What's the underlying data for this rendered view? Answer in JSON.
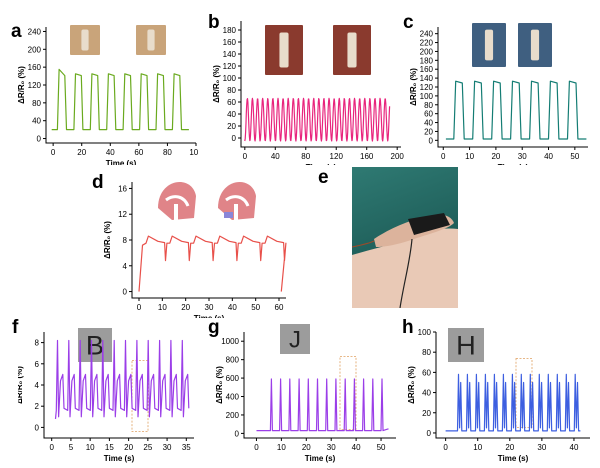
{
  "panels": {
    "a": {
      "letter": "a"
    },
    "b": {
      "letter": "b"
    },
    "c": {
      "letter": "c"
    },
    "d": {
      "letter": "d"
    },
    "e": {
      "letter": "e"
    },
    "f": {
      "letter": "f"
    },
    "g": {
      "letter": "g"
    },
    "h": {
      "letter": "h"
    }
  },
  "chart_data": [
    {
      "id": "a",
      "type": "line",
      "color": "#6aaa1f",
      "xlabel": "Time (s)",
      "ylabel": "ΔR/R₀ (%)",
      "xlim": [
        -5,
        100
      ],
      "ylim": [
        -10,
        250
      ],
      "xticks": [
        0,
        20,
        40,
        60,
        80,
        100
      ],
      "yticks": [
        0,
        40,
        80,
        120,
        160,
        200,
        240
      ],
      "series": [
        {
          "kind": "square",
          "period": 11.5,
          "start": 3,
          "low": 20,
          "high": 145,
          "cycles": 8,
          "firstPeak": 155
        }
      ]
    },
    {
      "id": "b",
      "type": "line",
      "color": "#e8257d",
      "xlabel": "Time (s)",
      "ylabel": "ΔR/R₀ (%)",
      "xlim": [
        -5,
        205
      ],
      "ylim": [
        -15,
        195
      ],
      "xticks": [
        0,
        40,
        80,
        120,
        160,
        200
      ],
      "yticks": [
        0,
        20,
        40,
        60,
        80,
        100,
        120,
        140,
        160,
        180
      ],
      "series": [
        {
          "kind": "sine",
          "period": 6.7,
          "start": 0,
          "end": 190,
          "low": -5,
          "high": 66
        }
      ]
    },
    {
      "id": "c",
      "type": "line",
      "color": "#147d74",
      "xlabel": "Time (s)",
      "ylabel": "ΔR/R₀ (%)",
      "xlim": [
        -2,
        55
      ],
      "ylim": [
        -15,
        255
      ],
      "xticks": [
        0,
        10,
        20,
        30,
        40,
        50
      ],
      "yticks": [
        0,
        20,
        40,
        60,
        80,
        100,
        120,
        140,
        160,
        180,
        200,
        220,
        240
      ],
      "series": [
        {
          "kind": "square",
          "period": 7.2,
          "start": 4,
          "low": 3,
          "high": 133,
          "cycles": 7,
          "firstPeak": 133
        }
      ]
    },
    {
      "id": "d",
      "type": "line",
      "color": "#e8504a",
      "xlabel": "Time (s)",
      "ylabel": "ΔR/R₀ (%)",
      "xlim": [
        -3,
        63
      ],
      "ylim": [
        -1,
        17
      ],
      "xticks": [
        0,
        10,
        20,
        30,
        40,
        50,
        60
      ],
      "yticks": [
        0,
        4,
        8,
        12,
        16
      ],
      "series": [
        {
          "kind": "speech",
          "period": 10.2,
          "start": 3,
          "base": 7.5,
          "peak": 8.6,
          "dip": 4.8,
          "cycles": 6
        }
      ]
    },
    {
      "id": "f",
      "type": "line",
      "color": "#9b3ee8",
      "xlabel": "Time (s)",
      "ylabel": "ΔR/R₀ (%)",
      "xlim": [
        -2,
        37
      ],
      "ylim": [
        -1,
        9
      ],
      "xticks": [
        0,
        5,
        10,
        15,
        20,
        25,
        30,
        35
      ],
      "yticks": [
        0,
        2,
        4,
        6,
        8
      ],
      "series": [
        {
          "kind": "spikeb",
          "period": 2.95,
          "start": 1,
          "base": 1.6,
          "peak": 8.2,
          "mid": 5,
          "cycles": 12
        }
      ]
    },
    {
      "id": "g",
      "type": "line",
      "color": "#9b3ee8",
      "xlabel": "Time (s)",
      "ylabel": "ΔR/R₀ (%)",
      "xlim": [
        -5,
        56
      ],
      "ylim": [
        -50,
        1100
      ],
      "xticks": [
        0,
        10,
        20,
        30,
        40,
        50
      ],
      "yticks": [
        0,
        200,
        400,
        600,
        800,
        1000
      ],
      "series": [
        {
          "kind": "spike",
          "period": 3.7,
          "start": 6,
          "base": 30,
          "peak": 590,
          "cycles": 13
        }
      ]
    },
    {
      "id": "h",
      "type": "line",
      "color": "#3d5fe0",
      "xlabel": "Time (s)",
      "ylabel": "ΔR/R₀ (%)",
      "xlim": [
        -3,
        45
      ],
      "ylim": [
        -5,
        100
      ],
      "xticks": [
        0,
        10,
        20,
        30,
        40
      ],
      "yticks": [
        0,
        20,
        40,
        60,
        80,
        100
      ],
      "series": [
        {
          "kind": "spikeh",
          "period": 2.8,
          "start": 4,
          "base": 2,
          "peak": 58,
          "cycles": 14
        }
      ]
    }
  ],
  "handwriting": {
    "f": "B",
    "g": "J",
    "h": "H"
  }
}
